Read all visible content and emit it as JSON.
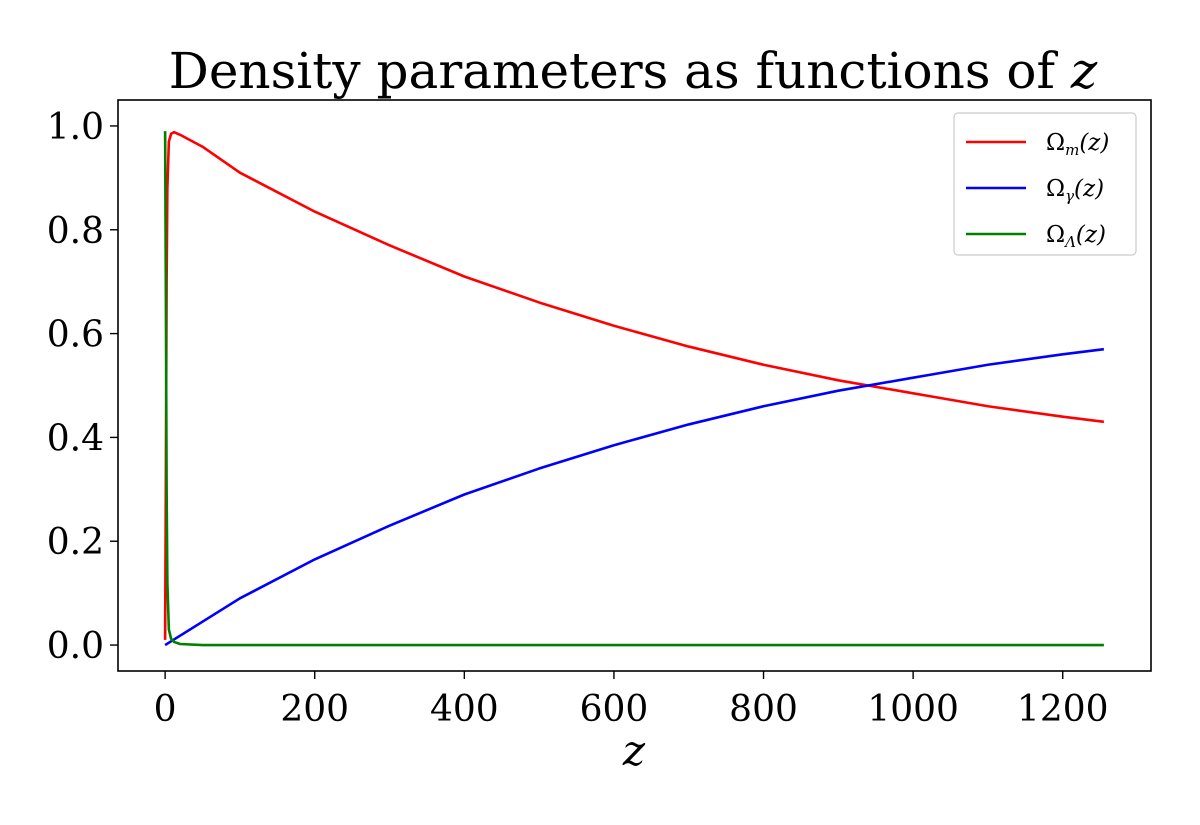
{
  "chart_data": {
    "type": "line",
    "title": "Density parameters as functions of",
    "title_variable": "z",
    "xlabel": "z",
    "ylabel": "",
    "xlim": [
      -63,
      1318
    ],
    "ylim": [
      -0.05,
      1.05
    ],
    "xticks": [
      0,
      200,
      400,
      600,
      800,
      1000,
      1200
    ],
    "xtick_labels": [
      "0",
      "200",
      "400",
      "600",
      "800",
      "1000",
      "1200"
    ],
    "yticks": [
      0.0,
      0.2,
      0.4,
      0.6,
      0.8,
      1.0
    ],
    "ytick_labels": [
      "0.0",
      "0.2",
      "0.4",
      "0.6",
      "0.8",
      "1.0"
    ],
    "grid": false,
    "legend_position": "top-right",
    "series": [
      {
        "name_base": "Ω",
        "name_sub": "m",
        "name_arg": "(z)",
        "color": "#ff0000",
        "x": [
          0,
          1,
          2,
          3,
          5,
          8,
          12,
          20,
          50,
          100,
          200,
          300,
          400,
          500,
          600,
          700,
          800,
          900,
          1000,
          1020,
          1100,
          1200,
          1255
        ],
        "y": [
          0.01,
          0.33,
          0.7,
          0.88,
          0.97,
          0.985,
          0.988,
          0.983,
          0.96,
          0.91,
          0.835,
          0.77,
          0.71,
          0.66,
          0.615,
          0.575,
          0.54,
          0.51,
          0.485,
          0.48,
          0.46,
          0.44,
          0.43
        ]
      },
      {
        "name_base": "Ω",
        "name_sub": "γ",
        "name_arg": "(z)",
        "color": "#0000ff",
        "x": [
          0,
          20,
          50,
          100,
          200,
          300,
          400,
          500,
          600,
          700,
          800,
          900,
          1000,
          1020,
          1100,
          1200,
          1255
        ],
        "y": [
          0.0,
          0.018,
          0.045,
          0.09,
          0.165,
          0.23,
          0.29,
          0.34,
          0.385,
          0.425,
          0.46,
          0.49,
          0.515,
          0.52,
          0.54,
          0.56,
          0.57
        ]
      },
      {
        "name_base": "Ω",
        "name_sub": "Λ",
        "name_arg": "(z)",
        "color": "#008000",
        "x": [
          0,
          1,
          2,
          3,
          5,
          8,
          12,
          20,
          50,
          100,
          400,
          800,
          1255
        ],
        "y": [
          0.99,
          0.67,
          0.3,
          0.12,
          0.03,
          0.012,
          0.006,
          0.002,
          0.0,
          0.0,
          0.0,
          0.0,
          0.0
        ]
      }
    ]
  }
}
